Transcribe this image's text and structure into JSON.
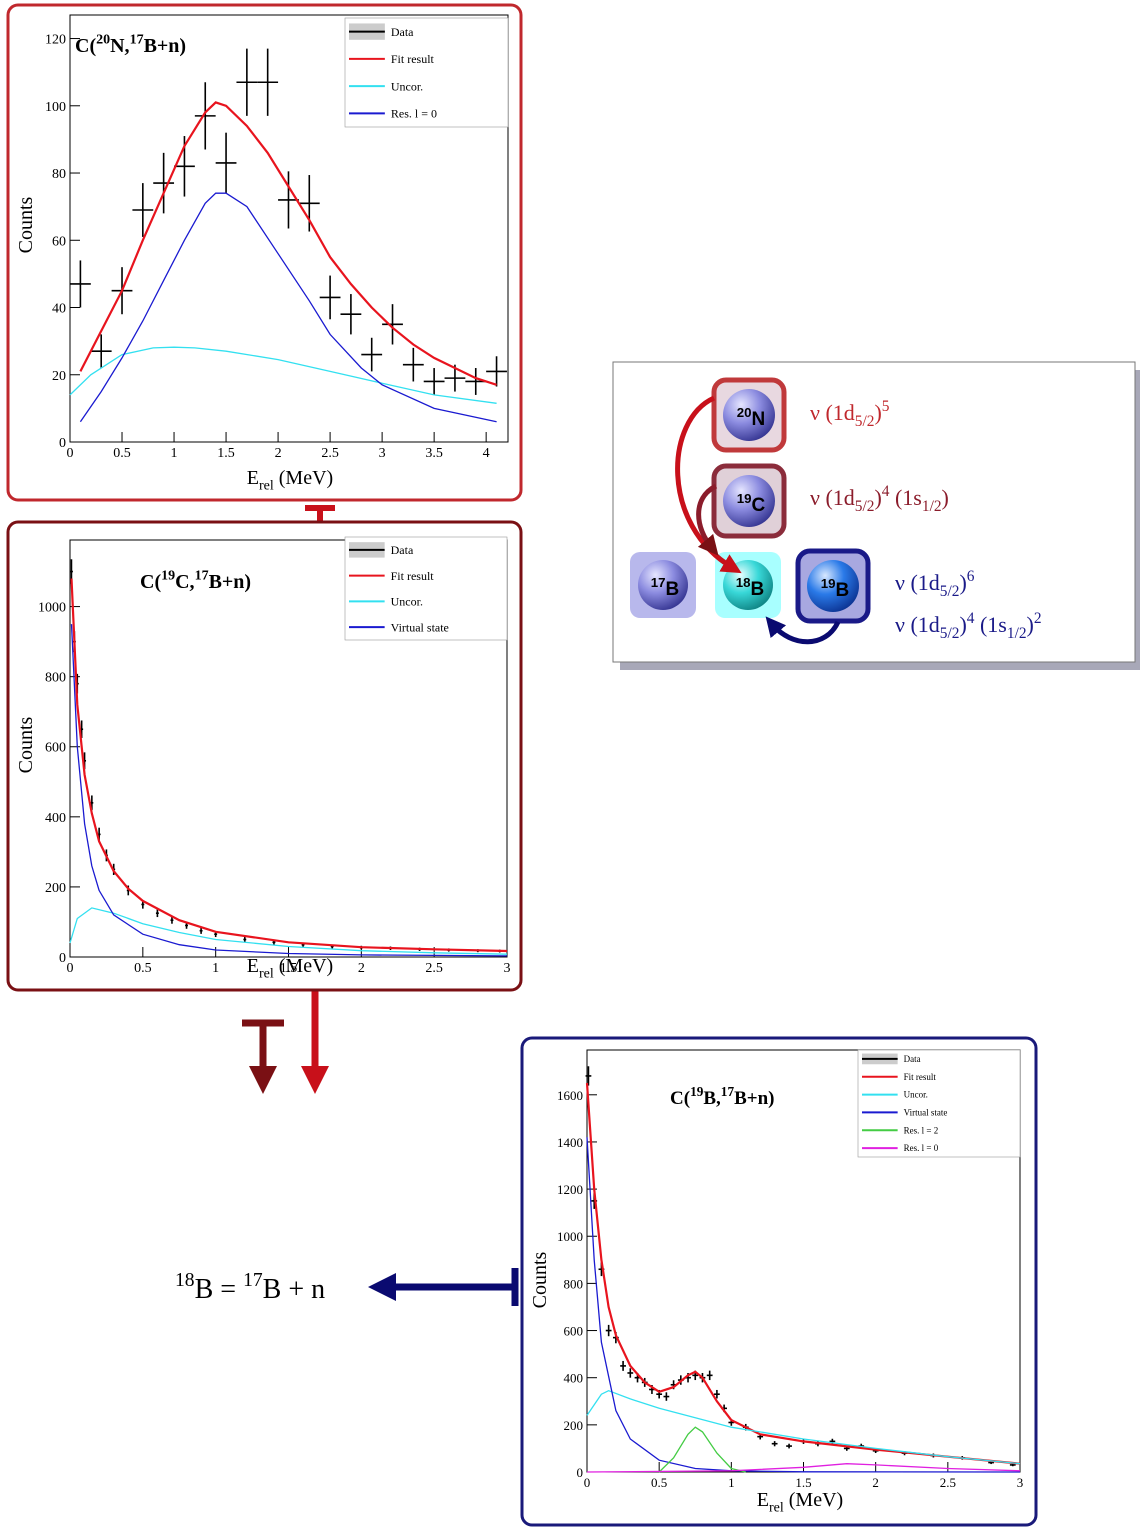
{
  "chart_data": [
    {
      "type": "line",
      "title": [
        {
          "text": "C("
        },
        {
          "text": "20",
          "pos": "sup"
        },
        {
          "text": "N,"
        },
        {
          "text": "17",
          "pos": "sup"
        },
        {
          "text": "B+n)"
        }
      ],
      "xlabel": [
        {
          "text": "E"
        },
        {
          "text": "rel",
          "pos": "sub"
        },
        {
          "text": " (MeV)"
        }
      ],
      "ylabel": "Counts",
      "legend": "upper right",
      "xlim": [
        0,
        4.21
      ],
      "ylim": [
        0,
        127
      ],
      "xticks": [
        0,
        0.5,
        1,
        1.5,
        2,
        2.5,
        3,
        3.5,
        4
      ],
      "yticks": [
        0,
        20,
        40,
        60,
        80,
        100,
        120
      ],
      "series": [
        {
          "name": "Data",
          "color": "#000000",
          "style": "errorbar",
          "x": [
            0.1,
            0.3,
            0.5,
            0.7,
            0.9,
            1.1,
            1.3,
            1.5,
            1.7,
            1.9,
            2.1,
            2.3,
            2.5,
            2.7,
            2.9,
            3.1,
            3.3,
            3.5,
            3.7,
            3.9,
            4.1
          ],
          "values": [
            47,
            27,
            45,
            69,
            77,
            82,
            97,
            83,
            107,
            107,
            72,
            71,
            43,
            38,
            26,
            35,
            23,
            18,
            19,
            18,
            21
          ],
          "errors": [
            7,
            5,
            7,
            8,
            9,
            9,
            10,
            9,
            10,
            10,
            8.5,
            8.4,
            6.5,
            6,
            5,
            6,
            5,
            4,
            4,
            4,
            4.5
          ]
        },
        {
          "name": "Fit result",
          "color": "#e8141e",
          "style": "line",
          "x": [
            0.1,
            0.3,
            0.5,
            0.7,
            0.9,
            1.1,
            1.3,
            1.4,
            1.5,
            1.7,
            1.9,
            2.1,
            2.3,
            2.5,
            2.7,
            2.9,
            3.1,
            3.3,
            3.5,
            3.7,
            3.9,
            4.1
          ],
          "values": [
            21,
            33,
            45,
            60,
            74,
            88,
            98,
            101,
            100,
            94,
            86,
            76,
            66,
            55,
            47,
            40,
            34,
            29,
            25,
            22,
            19,
            17
          ]
        },
        {
          "name": "Uncor.",
          "color": "#33e0f0",
          "style": "line",
          "x": [
            0,
            0.2,
            0.5,
            0.8,
            1.0,
            1.2,
            1.5,
            2,
            2.5,
            3,
            3.5,
            4.1
          ],
          "values": [
            14,
            20,
            26,
            28,
            28.2,
            28,
            27,
            24.5,
            21,
            17.5,
            14,
            11.5
          ]
        },
        {
          "name": "Res. l = 0",
          "color": "#1a1ad0",
          "style": "line",
          "x": [
            0.1,
            0.3,
            0.5,
            0.7,
            0.9,
            1.1,
            1.3,
            1.4,
            1.5,
            1.7,
            2,
            2.3,
            2.5,
            2.8,
            3,
            3.5,
            4.1
          ],
          "values": [
            6,
            15,
            25,
            36,
            48,
            60,
            71,
            74,
            74,
            70,
            56,
            42,
            32,
            22,
            17,
            10,
            6
          ]
        }
      ]
    },
    {
      "type": "line",
      "title": [
        {
          "text": "C("
        },
        {
          "text": "19",
          "pos": "sup"
        },
        {
          "text": "C,"
        },
        {
          "text": "17",
          "pos": "sup"
        },
        {
          "text": "B+n)"
        }
      ],
      "xlabel": [
        {
          "text": "E"
        },
        {
          "text": "rel",
          "pos": "sub"
        },
        {
          "text": " (MeV)"
        }
      ],
      "ylabel": "Counts",
      "legend": "upper right",
      "xlim": [
        0,
        3
      ],
      "ylim": [
        0,
        1190
      ],
      "xticks": [
        0,
        0.5,
        1,
        1.5,
        2,
        2.5,
        3
      ],
      "yticks": [
        0,
        200,
        400,
        600,
        800,
        1000
      ],
      "series": [
        {
          "name": "Data",
          "color": "#000000",
          "style": "errorbar",
          "x": [
            0.01,
            0.03,
            0.05,
            0.08,
            0.1,
            0.15,
            0.2,
            0.25,
            0.3,
            0.4,
            0.5,
            0.6,
            0.7,
            0.8,
            0.9,
            1.0,
            1.2,
            1.4,
            1.6,
            1.8,
            2.0,
            2.2,
            2.4,
            2.6,
            2.8,
            2.95
          ],
          "values": [
            1100,
            900,
            780,
            650,
            560,
            440,
            350,
            290,
            250,
            190,
            150,
            125,
            105,
            90,
            75,
            65,
            50,
            42,
            35,
            30,
            27,
            25,
            22,
            20,
            18,
            17
          ],
          "errors": [
            35,
            30,
            28,
            25,
            24,
            21,
            19,
            17,
            16,
            14,
            12,
            11,
            10,
            9.5,
            9,
            8,
            7,
            6.5,
            6,
            5.5,
            5,
            5,
            4.7,
            4.5,
            4.2,
            4.1
          ]
        },
        {
          "name": "Fit result",
          "color": "#e8141e",
          "style": "line",
          "x": [
            0.01,
            0.05,
            0.1,
            0.15,
            0.2,
            0.3,
            0.4,
            0.5,
            0.75,
            1,
            1.5,
            2,
            2.5,
            3
          ],
          "values": [
            1080,
            720,
            520,
            410,
            330,
            245,
            195,
            160,
            105,
            72,
            42,
            28,
            22,
            17
          ]
        },
        {
          "name": "Uncor.",
          "color": "#33e0f0",
          "style": "line",
          "x": [
            0,
            0.05,
            0.15,
            0.3,
            0.5,
            0.75,
            1,
            1.5,
            2,
            2.5,
            3
          ],
          "values": [
            40,
            110,
            140,
            125,
            95,
            70,
            50,
            30,
            18,
            12,
            8
          ]
        },
        {
          "name": "Virtual state",
          "color": "#1a1ad0",
          "style": "line",
          "x": [
            0.01,
            0.05,
            0.1,
            0.15,
            0.2,
            0.3,
            0.5,
            0.75,
            1,
            1.5,
            2,
            3
          ],
          "values": [
            950,
            600,
            380,
            260,
            190,
            120,
            65,
            35,
            20,
            10,
            6,
            3
          ]
        }
      ]
    },
    {
      "type": "line",
      "title": [
        {
          "text": "C("
        },
        {
          "text": "19",
          "pos": "sup"
        },
        {
          "text": "B,"
        },
        {
          "text": "17",
          "pos": "sup"
        },
        {
          "text": "B+n)"
        }
      ],
      "xlabel": [
        {
          "text": "E"
        },
        {
          "text": "rel",
          "pos": "sub"
        },
        {
          "text": " (MeV)"
        }
      ],
      "ylabel": "Counts",
      "legend": "upper right",
      "xlim": [
        0,
        3
      ],
      "ylim": [
        0,
        1790
      ],
      "xticks": [
        0,
        0.5,
        1,
        1.5,
        2,
        2.5,
        3
      ],
      "yticks": [
        0,
        200,
        400,
        600,
        800,
        1000,
        1200,
        1400,
        1600
      ],
      "series": [
        {
          "name": "Data",
          "color": "#000000",
          "style": "errorbar",
          "x": [
            0.01,
            0.05,
            0.1,
            0.15,
            0.2,
            0.25,
            0.3,
            0.35,
            0.4,
            0.45,
            0.5,
            0.55,
            0.6,
            0.65,
            0.7,
            0.75,
            0.8,
            0.85,
            0.9,
            0.95,
            1.0,
            1.1,
            1.2,
            1.3,
            1.4,
            1.5,
            1.6,
            1.7,
            1.8,
            1.9,
            2.0,
            2.2,
            2.4,
            2.6,
            2.8,
            2.95
          ],
          "values": [
            1680,
            1150,
            860,
            600,
            570,
            450,
            420,
            400,
            380,
            350,
            330,
            320,
            370,
            390,
            400,
            410,
            400,
            410,
            330,
            270,
            210,
            190,
            150,
            120,
            110,
            130,
            120,
            130,
            100,
            110,
            90,
            80,
            70,
            60,
            40,
            30
          ],
          "errors": [
            41,
            34,
            29,
            24,
            24,
            21,
            20,
            20,
            19,
            19,
            18,
            18,
            19,
            20,
            20,
            20,
            20,
            20,
            18,
            16,
            14,
            14,
            12,
            11,
            10,
            11,
            11,
            11,
            10,
            10,
            9.5,
            9,
            8.4,
            7.7,
            6.3,
            5.5
          ]
        },
        {
          "name": "Fit result",
          "color": "#e8141e",
          "style": "line",
          "x": [
            0,
            0.05,
            0.1,
            0.15,
            0.2,
            0.3,
            0.4,
            0.5,
            0.6,
            0.7,
            0.75,
            0.8,
            0.9,
            1.0,
            1.2,
            1.5,
            2,
            2.5,
            3
          ],
          "values": [
            1650,
            1200,
            900,
            700,
            580,
            450,
            380,
            340,
            360,
            410,
            425,
            400,
            300,
            220,
            160,
            130,
            95,
            65,
            35
          ]
        },
        {
          "name": "Uncor.",
          "color": "#33e0f0",
          "style": "line",
          "x": [
            0,
            0.1,
            0.15,
            0.3,
            0.5,
            0.75,
            1,
            1.5,
            2,
            2.5,
            3
          ],
          "values": [
            240,
            330,
            345,
            310,
            270,
            230,
            190,
            140,
            100,
            65,
            35
          ]
        },
        {
          "name": "Virtual state",
          "color": "#1a1ad0",
          "style": "line",
          "x": [
            0,
            0.05,
            0.1,
            0.2,
            0.3,
            0.5,
            0.75,
            1,
            1.5,
            3
          ],
          "values": [
            1420,
            900,
            550,
            260,
            140,
            50,
            15,
            5,
            1,
            0
          ]
        },
        {
          "name": "Res. l = 2",
          "color": "#44cc44",
          "style": "line",
          "x": [
            0.5,
            0.6,
            0.7,
            0.75,
            0.8,
            0.9,
            1.0,
            1.1
          ],
          "values": [
            0,
            60,
            160,
            190,
            170,
            80,
            15,
            0
          ]
        },
        {
          "name": "Res. l = 0",
          "color": "#e020e0",
          "style": "line",
          "x": [
            0,
            1,
            1.5,
            1.8,
            2,
            2.5,
            3
          ],
          "values": [
            0,
            5,
            20,
            35,
            30,
            15,
            5
          ]
        }
      ]
    }
  ],
  "diagram": {
    "nuclei": [
      [
        {
          "text": "20",
          "pos": "sup"
        },
        {
          "text": "N"
        }
      ],
      [
        {
          "text": "19",
          "pos": "sup"
        },
        {
          "text": "C"
        }
      ],
      [
        {
          "text": "17",
          "pos": "sup"
        },
        {
          "text": "B"
        }
      ],
      [
        {
          "text": "18",
          "pos": "sup"
        },
        {
          "text": "B"
        }
      ],
      [
        {
          "text": "19",
          "pos": "sup"
        },
        {
          "text": "B"
        }
      ]
    ],
    "configurations": [
      [
        {
          "text": "ν (1d"
        },
        {
          "text": "5/2",
          "pos": "sub"
        },
        {
          "text": ")"
        },
        {
          "text": "5",
          "pos": "sup"
        }
      ],
      [
        {
          "text": "ν (1d"
        },
        {
          "text": "5/2",
          "pos": "sub"
        },
        {
          "text": ")"
        },
        {
          "text": "4",
          "pos": "sup"
        },
        {
          "text": " (1s"
        },
        {
          "text": "1/2",
          "pos": "sub"
        },
        {
          "text": ")"
        }
      ],
      [
        {
          "text": "ν (1d"
        },
        {
          "text": "5/2",
          "pos": "sub"
        },
        {
          "text": ")"
        },
        {
          "text": "6",
          "pos": "sup"
        }
      ],
      [
        {
          "text": "ν (1d"
        },
        {
          "text": "5/2",
          "pos": "sub"
        },
        {
          "text": ")"
        },
        {
          "text": "4",
          "pos": "sup"
        },
        {
          "text": " (1s"
        },
        {
          "text": "1/2",
          "pos": "sub"
        },
        {
          "text": ")"
        },
        {
          "text": "2",
          "pos": "sup"
        }
      ]
    ]
  },
  "equation": [
    {
      "text": "18",
      "pos": "sup"
    },
    {
      "text": "B = "
    },
    {
      "text": "17",
      "pos": "sup"
    },
    {
      "text": "B + n"
    }
  ]
}
